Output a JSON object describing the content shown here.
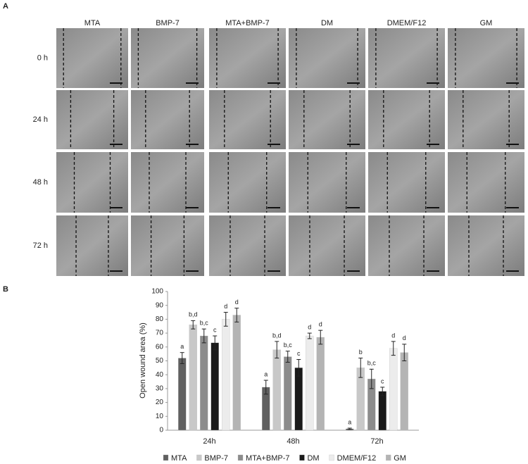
{
  "panel_a": {
    "label": "A",
    "columns": [
      "MTA",
      "BMP-7",
      "MTA+BMP-7",
      "DM",
      "DMEM/F12",
      "GM"
    ],
    "rows": [
      "0 h",
      "24 h",
      "48 h",
      "72 h"
    ]
  },
  "panel_b": {
    "label": "B"
  },
  "chart_data": {
    "type": "bar",
    "y_label": "Open wound area (%)",
    "categories": [
      "24h",
      "48h",
      "72h"
    ],
    "ylim": [
      0,
      100
    ],
    "yticks": [
      0,
      10,
      20,
      30,
      40,
      50,
      60,
      70,
      80,
      90,
      100
    ],
    "grid": false,
    "legend": "bottom",
    "series": [
      {
        "name": "MTA",
        "color": "#606060",
        "values": [
          52,
          31,
          1
        ],
        "errors": [
          4,
          5,
          0.5
        ],
        "sig_labels": [
          "a",
          "a",
          "a"
        ]
      },
      {
        "name": "BMP-7",
        "color": "#c8c8c8",
        "values": [
          76,
          58,
          45
        ],
        "errors": [
          3,
          6,
          7
        ],
        "sig_labels": [
          "b,d",
          "b,d",
          "b"
        ]
      },
      {
        "name": "MTA+BMP-7",
        "color": "#8c8c8c",
        "values": [
          68,
          53,
          37
        ],
        "errors": [
          5,
          4,
          7
        ],
        "sig_labels": [
          "b,c",
          "b,c",
          "b,c"
        ]
      },
      {
        "name": "DM",
        "color": "#1a1a1a",
        "values": [
          63,
          45,
          28
        ],
        "errors": [
          5,
          6,
          3
        ],
        "sig_labels": [
          "c",
          "c",
          "c"
        ]
      },
      {
        "name": "DMEM/F12",
        "color": "#ececec",
        "values": [
          80,
          68,
          59
        ],
        "errors": [
          5,
          2,
          5
        ],
        "sig_labels": [
          "d",
          "d",
          "d"
        ]
      },
      {
        "name": "GM",
        "color": "#b4b4b4",
        "values": [
          83,
          67,
          56
        ],
        "errors": [
          5,
          5,
          6
        ],
        "sig_labels": [
          "d",
          "d",
          "d"
        ]
      }
    ]
  }
}
